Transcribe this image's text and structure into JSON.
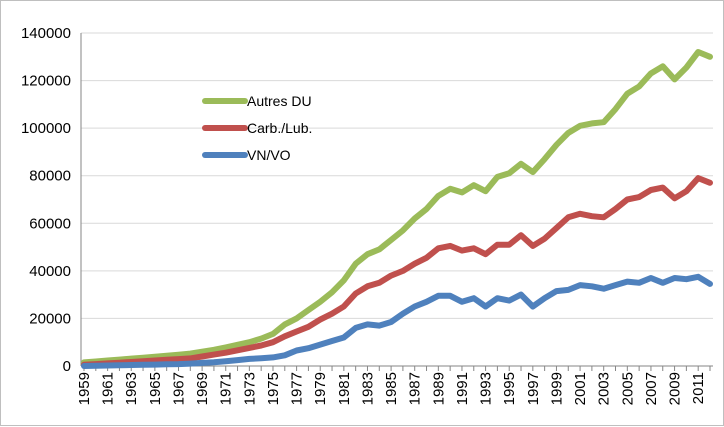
{
  "chart_data": {
    "type": "line",
    "title": "",
    "xlabel": "",
    "ylabel": "",
    "ylim": [
      0,
      140000
    ],
    "yticks": [
      0,
      20000,
      40000,
      60000,
      80000,
      100000,
      120000,
      140000
    ],
    "ytick_labels": [
      "0",
      "20000",
      "40000",
      "60000",
      "80000",
      "100000",
      "120000",
      "140000"
    ],
    "xtick_labels": [
      "1959",
      "1961",
      "1963",
      "1965",
      "1967",
      "1969",
      "1971",
      "1973",
      "1975",
      "1977",
      "1979",
      "1981",
      "1983",
      "1985",
      "1987",
      "1989",
      "1991",
      "1993",
      "1995",
      "1997",
      "1999",
      "2001",
      "2003",
      "2005",
      "2007",
      "2009",
      "2011"
    ],
    "x": [
      1959,
      1960,
      1961,
      1962,
      1963,
      1964,
      1965,
      1966,
      1967,
      1968,
      1969,
      1970,
      1971,
      1972,
      1973,
      1974,
      1975,
      1976,
      1977,
      1978,
      1979,
      1980,
      1981,
      1982,
      1983,
      1984,
      1985,
      1986,
      1987,
      1988,
      1989,
      1990,
      1991,
      1992,
      1993,
      1994,
      1995,
      1996,
      1997,
      1998,
      1999,
      2000,
      2001,
      2002,
      2003,
      2004,
      2005,
      2006,
      2007,
      2008,
      2009,
      2010,
      2011,
      2012
    ],
    "grid": "horizontal",
    "legend_position": "upper-left",
    "series": [
      {
        "name": "Autres DU",
        "color": "#9bbb59",
        "values": [
          1500,
          1900,
          2300,
          2700,
          3100,
          3500,
          3900,
          4300,
          4700,
          5200,
          6000,
          6800,
          7800,
          8900,
          10000,
          11500,
          13500,
          17500,
          20000,
          23500,
          27000,
          31000,
          36000,
          43000,
          47000,
          49000,
          53000,
          57000,
          62000,
          66000,
          71500,
          74500,
          73000,
          76000,
          73500,
          79500,
          81000,
          85000,
          81500,
          87000,
          93000,
          98000,
          101000,
          102000,
          102500,
          108000,
          114500,
          117500,
          123000,
          126000,
          120500,
          125500,
          132000,
          130000
        ]
      },
      {
        "name": "Carb./Lub.",
        "color": "#c0504d",
        "values": [
          500,
          800,
          1100,
          1400,
          1700,
          2000,
          2300,
          2600,
          2900,
          3200,
          4000,
          4800,
          5600,
          6600,
          7600,
          8600,
          10000,
          12500,
          14500,
          16500,
          19500,
          22000,
          25000,
          30500,
          33500,
          35000,
          38000,
          40000,
          43000,
          45500,
          49500,
          50500,
          48500,
          49500,
          47000,
          51000,
          51000,
          55000,
          50500,
          53500,
          58000,
          62500,
          64000,
          63000,
          62500,
          66000,
          70000,
          71000,
          74000,
          75000,
          70500,
          73500,
          79000,
          77000
        ]
      },
      {
        "name": "VN/VO",
        "color": "#4f81bd",
        "values": [
          0,
          100,
          200,
          300,
          400,
          500,
          600,
          700,
          800,
          1000,
          1300,
          1600,
          2000,
          2500,
          3000,
          3300,
          3600,
          4500,
          6500,
          7500,
          9000,
          10500,
          12000,
          16000,
          17500,
          17000,
          18500,
          22000,
          25000,
          27000,
          29500,
          29500,
          27000,
          28500,
          25000,
          28500,
          27500,
          30000,
          25000,
          28500,
          31500,
          32000,
          34000,
          33500,
          32500,
          34000,
          35500,
          35000,
          37000,
          35000,
          37000,
          36500,
          37500,
          34500
        ]
      }
    ]
  }
}
